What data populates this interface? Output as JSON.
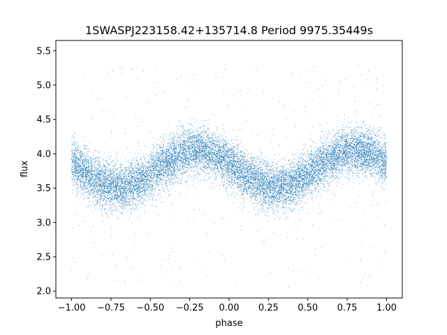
{
  "chart_data": {
    "type": "scatter",
    "title": "1SWASPJ223158.42+135714.8 Period 9975.35449s",
    "xlabel": "phase",
    "ylabel": "flux",
    "xlim": [
      -1.1,
      1.1
    ],
    "ylim": [
      1.9,
      5.65
    ],
    "xticks": [
      -1.0,
      -0.75,
      -0.5,
      -0.25,
      0.0,
      0.25,
      0.5,
      0.75,
      1.0
    ],
    "xtick_labels": [
      "−1.00",
      "−0.75",
      "−0.50",
      "−0.25",
      "0.00",
      "0.25",
      "0.50",
      "0.75",
      "1.00"
    ],
    "yticks": [
      2.0,
      2.5,
      3.0,
      3.5,
      4.0,
      4.5,
      5.0,
      5.5
    ],
    "ytick_labels": [
      "2.0",
      "2.5",
      "3.0",
      "3.5",
      "4.0",
      "4.5",
      "5.0",
      "5.5"
    ],
    "grid": false,
    "legend": "none",
    "marker_color": "#1f77b4",
    "series": [
      {
        "model": "sinusoid",
        "x_range": [
          -1.0,
          1.0
        ],
        "mean_flux": 3.78,
        "amplitude": 0.27,
        "max_phase": -0.2,
        "min_phase": 0.3,
        "period_in_phase": 1.0,
        "scatter_sigma": 0.17,
        "outlier_flux_range": [
          2.05,
          5.3
        ],
        "approx_point_count": 16000,
        "samples": [
          {
            "x": -1.0,
            "y": 3.84
          },
          {
            "x": -0.9,
            "y": 3.7
          },
          {
            "x": -0.8,
            "y": 3.59
          },
          {
            "x": -0.7,
            "y": 3.52
          },
          {
            "x": -0.6,
            "y": 3.55
          },
          {
            "x": -0.5,
            "y": 3.66
          },
          {
            "x": -0.4,
            "y": 3.84
          },
          {
            "x": -0.3,
            "y": 4.0
          },
          {
            "x": -0.2,
            "y": 4.05
          },
          {
            "x": -0.1,
            "y": 4.0
          },
          {
            "x": 0.0,
            "y": 3.84
          },
          {
            "x": 0.1,
            "y": 3.66
          },
          {
            "x": 0.2,
            "y": 3.55
          },
          {
            "x": 0.3,
            "y": 3.51
          },
          {
            "x": 0.4,
            "y": 3.56
          },
          {
            "x": 0.5,
            "y": 3.7
          },
          {
            "x": 0.6,
            "y": 3.86
          },
          {
            "x": 0.7,
            "y": 4.0
          },
          {
            "x": 0.8,
            "y": 4.05
          },
          {
            "x": 0.9,
            "y": 4.0
          },
          {
            "x": 1.0,
            "y": 3.84
          }
        ]
      }
    ]
  }
}
